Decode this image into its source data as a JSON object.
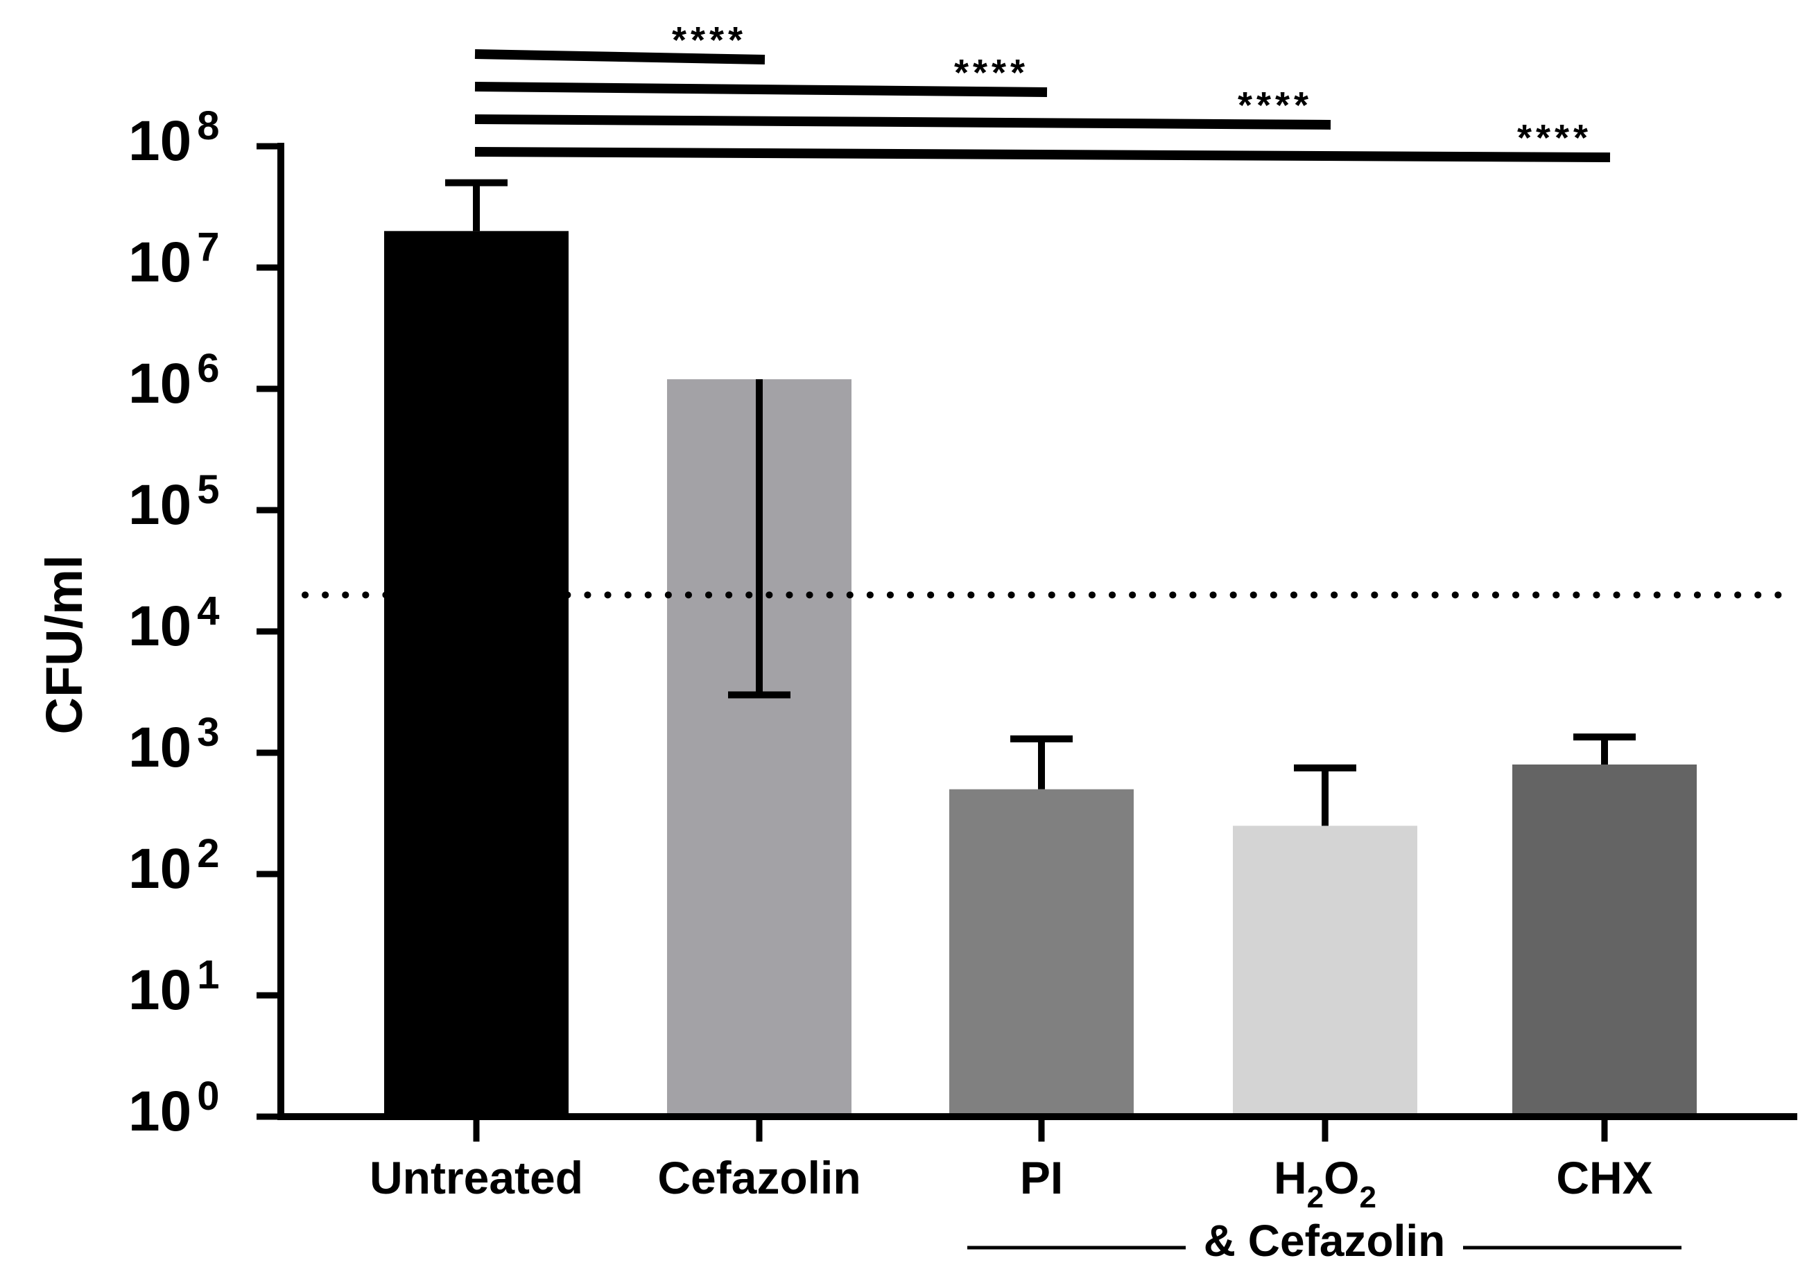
{
  "chart_data": {
    "type": "bar",
    "ylabel": "CFU/ml",
    "yscale": "log10",
    "ylim": [
      1,
      100000000
    ],
    "y_ticks": [
      {
        "base": "10",
        "exp": "0"
      },
      {
        "base": "10",
        "exp": "1"
      },
      {
        "base": "10",
        "exp": "2"
      },
      {
        "base": "10",
        "exp": "3"
      },
      {
        "base": "10",
        "exp": "4"
      },
      {
        "base": "10",
        "exp": "5"
      },
      {
        "base": "10",
        "exp": "6"
      },
      {
        "base": "10",
        "exp": "7"
      },
      {
        "base": "10",
        "exp": "8"
      }
    ],
    "categories": [
      "Untreated",
      "Cefazolin",
      "PI",
      "H2O2",
      "CHX"
    ],
    "values": [
      20000000,
      1200000,
      500,
      250,
      800
    ],
    "error_upper": [
      50000000,
      3000,
      1300,
      750,
      1350
    ],
    "bar_colors": [
      "#000000",
      "#a3a2a6",
      "#808080",
      "#d4d4d4",
      "#646464"
    ],
    "h2o2_label": {
      "main": "H",
      "sub1": "2",
      "mid": "O",
      "sub2": "2"
    },
    "group_label": "& Cefazolin",
    "detection_limit": 20000,
    "significance": [
      {
        "from": "Untreated",
        "to": "Cefazolin",
        "label": "****"
      },
      {
        "from": "Untreated",
        "to": "PI",
        "label": "****"
      },
      {
        "from": "Untreated",
        "to": "H2O2",
        "label": "****"
      },
      {
        "from": "Untreated",
        "to": "CHX",
        "label": "****"
      }
    ],
    "grid": false,
    "legend": "none"
  }
}
